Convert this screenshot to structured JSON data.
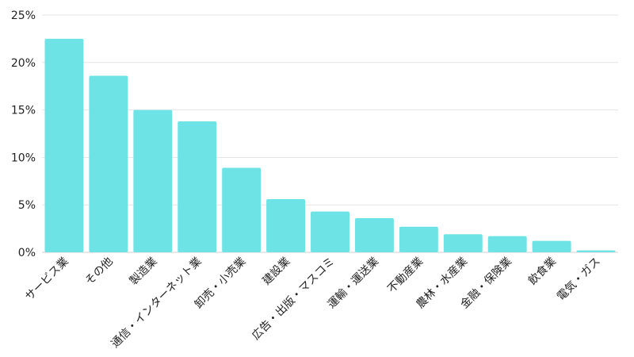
{
  "chart_data": {
    "type": "bar",
    "categories": [
      "サービス業",
      "その他",
      "製造業",
      "通信・インターネット業",
      "卸売・小売業",
      "建設業",
      "広告・出版・マスコミ",
      "運輸・運送業",
      "不動産業",
      "農林・水産業",
      "金融・保険業",
      "飲食業",
      "電気・ガス"
    ],
    "values": [
      22.5,
      18.6,
      15.0,
      13.8,
      8.9,
      5.6,
      4.3,
      3.6,
      2.7,
      1.9,
      1.7,
      1.2,
      0.2
    ],
    "ylim": [
      0,
      25
    ],
    "yticks": [
      0,
      5,
      10,
      15,
      20,
      25
    ],
    "ytick_labels": [
      "0%",
      "5%",
      "10%",
      "15%",
      "20%",
      "25%"
    ],
    "title": "",
    "xlabel": "",
    "ylabel": "",
    "grid": true,
    "bar_color": "#6ee3e6"
  }
}
